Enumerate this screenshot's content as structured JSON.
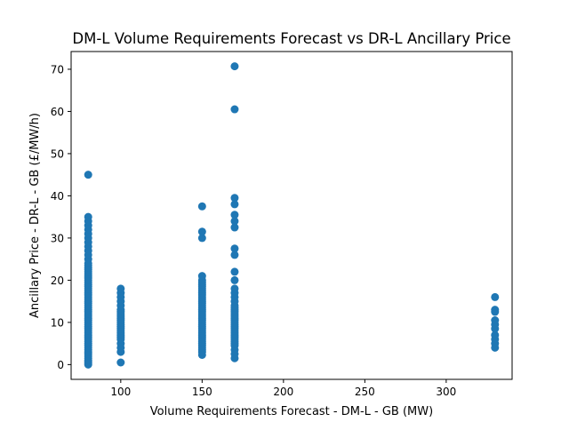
{
  "chart_data": {
    "type": "scatter",
    "title": "DM-L Volume Requirements Forecast vs DR-L Ancillary Price",
    "xlabel": "Volume Requirements Forecast - DM-L - GB (MW)",
    "ylabel": "Ancillary Price - DR-L - GB (£/MW/h)",
    "xlim": [
      69.5,
      340.5
    ],
    "ylim": [
      -3.5,
      74.2
    ],
    "xticks": [
      100,
      150,
      200,
      250,
      300
    ],
    "xtick_labels": [
      "100",
      "150",
      "200",
      "250",
      "300"
    ],
    "yticks": [
      0,
      10,
      20,
      30,
      40,
      50,
      60,
      70
    ],
    "ytick_labels": [
      "0",
      "10",
      "20",
      "30",
      "40",
      "50",
      "60",
      "70"
    ],
    "grid": false,
    "legend": "none",
    "marker_color": "#1f77b4",
    "series": [
      {
        "name": "",
        "points": [
          [
            80,
            0
          ],
          [
            80,
            0.3
          ],
          [
            80,
            0.6
          ],
          [
            80,
            1
          ],
          [
            80,
            1.5
          ],
          [
            80,
            2
          ],
          [
            80,
            2.5
          ],
          [
            80,
            3
          ],
          [
            80,
            3.5
          ],
          [
            80,
            4
          ],
          [
            80,
            4.5
          ],
          [
            80,
            5
          ],
          [
            80,
            5.5
          ],
          [
            80,
            6
          ],
          [
            80,
            6.5
          ],
          [
            80,
            7
          ],
          [
            80,
            7.5
          ],
          [
            80,
            8
          ],
          [
            80,
            8.5
          ],
          [
            80,
            9
          ],
          [
            80,
            9.5
          ],
          [
            80,
            10
          ],
          [
            80,
            10.5
          ],
          [
            80,
            11
          ],
          [
            80,
            11.5
          ],
          [
            80,
            12
          ],
          [
            80,
            12.5
          ],
          [
            80,
            13
          ],
          [
            80,
            13.5
          ],
          [
            80,
            14
          ],
          [
            80,
            14.5
          ],
          [
            80,
            15
          ],
          [
            80,
            15.5
          ],
          [
            80,
            16
          ],
          [
            80,
            16.5
          ],
          [
            80,
            17
          ],
          [
            80,
            17.5
          ],
          [
            80,
            18
          ],
          [
            80,
            18.5
          ],
          [
            80,
            19
          ],
          [
            80,
            19.5
          ],
          [
            80,
            20
          ],
          [
            80,
            20.5
          ],
          [
            80,
            21
          ],
          [
            80,
            21.5
          ],
          [
            80,
            22
          ],
          [
            80,
            22.5
          ],
          [
            80,
            23
          ],
          [
            80,
            23.5
          ],
          [
            80,
            24
          ],
          [
            80,
            25
          ],
          [
            80,
            26
          ],
          [
            80,
            27
          ],
          [
            80,
            28
          ],
          [
            80,
            29
          ],
          [
            80,
            30
          ],
          [
            80,
            31
          ],
          [
            80,
            32
          ],
          [
            80,
            33
          ],
          [
            80,
            34
          ],
          [
            80,
            35
          ],
          [
            80,
            45
          ],
          [
            100,
            0.5
          ],
          [
            100,
            3
          ],
          [
            100,
            4
          ],
          [
            100,
            5
          ],
          [
            100,
            6
          ],
          [
            100,
            6.5
          ],
          [
            100,
            7
          ],
          [
            100,
            7.5
          ],
          [
            100,
            8
          ],
          [
            100,
            8.5
          ],
          [
            100,
            9
          ],
          [
            100,
            9.5
          ],
          [
            100,
            10
          ],
          [
            100,
            10.5
          ],
          [
            100,
            11
          ],
          [
            100,
            11.5
          ],
          [
            100,
            12
          ],
          [
            100,
            12.5
          ],
          [
            100,
            13
          ],
          [
            100,
            14
          ],
          [
            100,
            15
          ],
          [
            100,
            16
          ],
          [
            100,
            17
          ],
          [
            100,
            18
          ],
          [
            150,
            2.3
          ],
          [
            150,
            3
          ],
          [
            150,
            3.5
          ],
          [
            150,
            4
          ],
          [
            150,
            4.5
          ],
          [
            150,
            5
          ],
          [
            150,
            5.5
          ],
          [
            150,
            6
          ],
          [
            150,
            6.5
          ],
          [
            150,
            7
          ],
          [
            150,
            7.5
          ],
          [
            150,
            8
          ],
          [
            150,
            8.5
          ],
          [
            150,
            9
          ],
          [
            150,
            9.5
          ],
          [
            150,
            10
          ],
          [
            150,
            10.5
          ],
          [
            150,
            11
          ],
          [
            150,
            11.5
          ],
          [
            150,
            12
          ],
          [
            150,
            12.5
          ],
          [
            150,
            13
          ],
          [
            150,
            13.5
          ],
          [
            150,
            14
          ],
          [
            150,
            14.5
          ],
          [
            150,
            15
          ],
          [
            150,
            15.5
          ],
          [
            150,
            16
          ],
          [
            150,
            16.5
          ],
          [
            150,
            17
          ],
          [
            150,
            17.5
          ],
          [
            150,
            18
          ],
          [
            150,
            18.5
          ],
          [
            150,
            19
          ],
          [
            150,
            19.5
          ],
          [
            150,
            20
          ],
          [
            150,
            21
          ],
          [
            150,
            30
          ],
          [
            150,
            31.5
          ],
          [
            150,
            37.5
          ],
          [
            170,
            1.5
          ],
          [
            170,
            2.5
          ],
          [
            170,
            3.5
          ],
          [
            170,
            4.5
          ],
          [
            170,
            5
          ],
          [
            170,
            5.5
          ],
          [
            170,
            6
          ],
          [
            170,
            6.5
          ],
          [
            170,
            7
          ],
          [
            170,
            7.5
          ],
          [
            170,
            8
          ],
          [
            170,
            8.5
          ],
          [
            170,
            9
          ],
          [
            170,
            9.5
          ],
          [
            170,
            10
          ],
          [
            170,
            10.5
          ],
          [
            170,
            11
          ],
          [
            170,
            11.5
          ],
          [
            170,
            12
          ],
          [
            170,
            12.5
          ],
          [
            170,
            13
          ],
          [
            170,
            13.5
          ],
          [
            170,
            14
          ],
          [
            170,
            15
          ],
          [
            170,
            16
          ],
          [
            170,
            17
          ],
          [
            170,
            18
          ],
          [
            170,
            20
          ],
          [
            170,
            22
          ],
          [
            170,
            26
          ],
          [
            170,
            27.5
          ],
          [
            170,
            32.5
          ],
          [
            170,
            34
          ],
          [
            170,
            35.5
          ],
          [
            170,
            38
          ],
          [
            170,
            39.5
          ],
          [
            170,
            60.5
          ],
          [
            170,
            70.7
          ],
          [
            330,
            4
          ],
          [
            330,
            5
          ],
          [
            330,
            6
          ],
          [
            330,
            7
          ],
          [
            330,
            8.5
          ],
          [
            330,
            9.5
          ],
          [
            330,
            10.5
          ],
          [
            330,
            12.5
          ],
          [
            330,
            13
          ],
          [
            330,
            16
          ]
        ]
      }
    ]
  }
}
